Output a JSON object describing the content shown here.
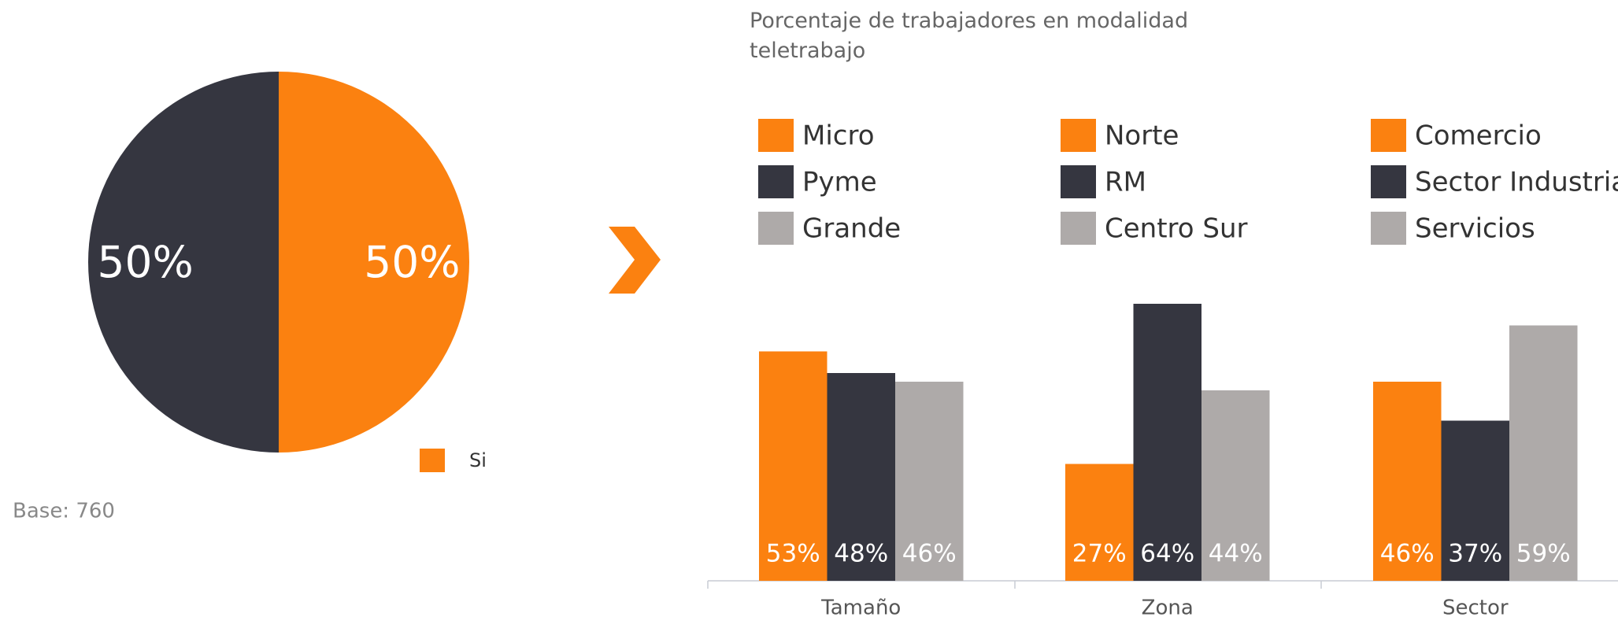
{
  "chart_data": [
    {
      "type": "pie",
      "values": [
        50,
        50
      ],
      "value_labels": [
        "50%",
        "50%"
      ],
      "labels": [
        "Si",
        null
      ],
      "colors": [
        "#fb8110",
        "#353640"
      ],
      "note": "Base: 760"
    },
    {
      "type": "bar",
      "title": "Porcentaje de trabajadores en modalidad teletrabajo",
      "categories": [
        "Tamaño",
        "Zona",
        "Sector"
      ],
      "groups": [
        {
          "series": [
            {
              "name": "Micro",
              "color": "#fb8110",
              "value": 53,
              "value_label": "53%"
            },
            {
              "name": "Pyme",
              "color": "#353640",
              "value": 48,
              "value_label": "48%"
            },
            {
              "name": "Grande",
              "color": "#aeaaa9",
              "value": 46,
              "value_label": "46%"
            }
          ]
        },
        {
          "series": [
            {
              "name": "Norte",
              "color": "#fb8110",
              "value": 27,
              "value_label": "27%"
            },
            {
              "name": "RM",
              "color": "#353640",
              "value": 64,
              "value_label": "64%"
            },
            {
              "name": "Centro Sur",
              "color": "#aeaaa9",
              "value": 44,
              "value_label": "44%"
            }
          ]
        },
        {
          "series": [
            {
              "name": "Comercio",
              "color": "#fb8110",
              "value": 46,
              "value_label": "46%"
            },
            {
              "name": "Sector Industrial",
              "color": "#353640",
              "value": 37,
              "value_label": "37%"
            },
            {
              "name": "Servicios",
              "color": "#aeaaa9",
              "value": 59,
              "value_label": "59%"
            }
          ]
        }
      ]
    }
  ]
}
